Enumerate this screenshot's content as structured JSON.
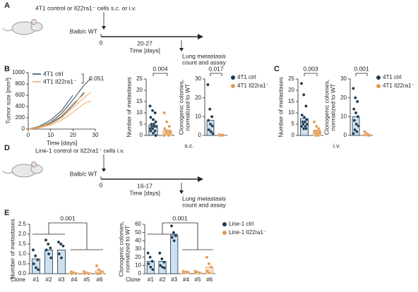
{
  "panel_labels": [
    "A",
    "B",
    "C",
    "D",
    "E"
  ],
  "schematics": [
    {
      "cells": "4T1 control or Il22ra1⁻ cells s.c. or i.v.",
      "host": "Balb/c WT",
      "start": 0,
      "duration": "20-27",
      "time_label": "Time [days]",
      "endpoint": [
        "Lung metastasis",
        "count and assay"
      ]
    },
    {
      "cells": "Line-1 control or Il22ra1⁻ cells i.v.",
      "host": "Balb/c WT",
      "start": 0,
      "duration": "16-17",
      "time_label": "Time [days]",
      "endpoint": [
        "Lung metastasis",
        "count and assay"
      ]
    }
  ],
  "route_labels": [
    "s.c.",
    "i.v."
  ],
  "chart_data": [
    {
      "type": "line",
      "xlabel": "Time [days]",
      "ylabel": [
        "Tumor size [mm³]"
      ],
      "x": [
        0,
        5,
        10,
        15,
        20,
        25,
        28
      ],
      "xlim": [
        0,
        30
      ],
      "xticks": [
        0,
        10,
        20,
        30
      ],
      "ylim": [
        0,
        1000
      ],
      "yticks": [
        0,
        200,
        400,
        600,
        800,
        1000
      ],
      "annotations": [
        "0.051"
      ],
      "series": [
        {
          "name": "4T1 ctrl",
          "color": "#2b4a63",
          "values": [
            0,
            40,
            120,
            280,
            520,
            780,
            900
          ]
        },
        {
          "color": "#2b4a63",
          "values": [
            0,
            30,
            100,
            220,
            420,
            650,
            null
          ]
        },
        {
          "color": "#2b4a63",
          "values": [
            0,
            50,
            160,
            330,
            600,
            null,
            null
          ]
        },
        {
          "name": "4T1 Il22ra1⁻",
          "color": "#eca864",
          "values": [
            0,
            30,
            90,
            200,
            380,
            560,
            650
          ]
        },
        {
          "color": "#eca864",
          "values": [
            0,
            20,
            70,
            160,
            300,
            450,
            500
          ]
        },
        {
          "color": "#eca864",
          "values": [
            0,
            40,
            110,
            240,
            450,
            620,
            null
          ]
        }
      ]
    },
    {
      "type": "bar",
      "ylabel": [
        "Number of metastases"
      ],
      "ylim": [
        0,
        25
      ],
      "yticks": [
        0,
        5,
        10,
        15,
        20,
        25
      ],
      "annotations": [
        "0.004"
      ],
      "series": [
        {
          "color": "#1d3a52",
          "fill": "#cfe0ee",
          "values": [
            4.5
          ],
          "points": [
            [
              13,
              11,
              10,
              8,
              7,
              6,
              5,
              5,
              4,
              4,
              4,
              3,
              3,
              2,
              2,
              1,
              0
            ]
          ]
        },
        {
          "color": "#e09a55",
          "fill": "#fbe3c8",
          "values": [
            2
          ],
          "points": [
            [
              10,
              6,
              4,
              3,
              2,
              2,
              2,
              1,
              1,
              1,
              0,
              0
            ]
          ]
        }
      ]
    },
    {
      "type": "bar",
      "ylabel": [
        "Clonogenic colonies,",
        "normalized to WT"
      ],
      "ylim": [
        0,
        30
      ],
      "yticks": [
        0,
        10,
        20,
        30
      ],
      "annotations": [
        "0.017"
      ],
      "series": [
        {
          "name": "4T1 ctrl",
          "color": "#1d3a52",
          "fill": "#cfe0ee",
          "values": [
            8
          ],
          "points": [
            [
              27,
              14,
              10,
              8,
              6,
              5,
              3,
              2,
              1
            ]
          ]
        },
        {
          "name": "4T1 Il22ra1⁻",
          "color": "#e09a55",
          "fill": "#fbe3c8",
          "values": [
            0.2
          ],
          "points": [
            [
              0.5,
              0.3,
              0.2,
              0.1,
              0
            ]
          ]
        }
      ]
    },
    {
      "type": "bar",
      "ylabel": [
        "Number of metastases"
      ],
      "ylim": [
        0,
        25
      ],
      "yticks": [
        0,
        5,
        10,
        15,
        20,
        25
      ],
      "annotations": [
        "0.003"
      ],
      "series": [
        {
          "color": "#1d3a52",
          "fill": "#cfe0ee",
          "values": [
            7.5
          ],
          "points": [
            [
              23,
              18,
              13,
              9,
              8,
              7,
              6,
              6,
              5,
              5,
              4,
              4,
              3,
              3
            ]
          ]
        },
        {
          "color": "#e09a55",
          "fill": "#fbe3c8",
          "values": [
            2
          ],
          "points": [
            [
              6,
              4,
              3,
              2,
              2,
              2,
              1,
              1,
              1,
              0,
              0
            ]
          ]
        }
      ]
    },
    {
      "type": "bar",
      "ylabel": [
        "Clonogenic colonies,",
        "normalized to WT"
      ],
      "ylim": [
        0,
        30
      ],
      "yticks": [
        0,
        10,
        20,
        30
      ],
      "annotations": [
        "0.001"
      ],
      "series": [
        {
          "name": "4T1 ctrl",
          "color": "#1d3a52",
          "fill": "#cfe0ee",
          "values": [
            10
          ],
          "points": [
            [
              25,
              20,
              18,
              14,
              12,
              10,
              8,
              6,
              5,
              3,
              2,
              1
            ]
          ]
        },
        {
          "name": "4T1 Il22ra1⁻",
          "color": "#e09a55",
          "fill": "#fbe3c8",
          "values": [
            0.5
          ],
          "points": [
            [
              2,
              1,
              0.5,
              0.3,
              0.2,
              0
            ]
          ]
        }
      ]
    },
    {
      "type": "bar",
      "ylabel": [
        "Number of metastases"
      ],
      "xlabel": "Clone",
      "categories": [
        "#1",
        "#2",
        "#3",
        "#4",
        "#5",
        "#6"
      ],
      "ylim": [
        0,
        2.5
      ],
      "yticks": [
        {
          "value": 0,
          "label": "0.0"
        },
        0.5,
        {
          "value": 1,
          "label": "1.0"
        },
        1.5,
        {
          "value": 2,
          "label": "2.0"
        },
        2.5
      ],
      "annotations": [
        "0.001"
      ],
      "series": [
        {
          "color": "#1d3a52",
          "fill": "#cfe0ee",
          "values": [
            0.75,
            1.2,
            1.2,
            null,
            null,
            null
          ],
          "points": [
            [
              1.2,
              0.9,
              0.7,
              0.5,
              0.3,
              0.2
            ],
            [
              1.7,
              1.5,
              1.3,
              1.2,
              1.0,
              0.8
            ],
            [
              1.6,
              1.5,
              1.4,
              1.0,
              0.8
            ],
            [],
            [],
            []
          ]
        },
        {
          "color": "#e09a55",
          "fill": "#fbe3c8",
          "values": [
            null,
            null,
            null,
            0.05,
            0.05,
            0.15
          ],
          "points": [
            [],
            [],
            [],
            [
              0.1,
              0.05,
              0,
              0
            ],
            [
              0.1,
              0.05,
              0,
              0
            ],
            [
              0.4,
              0.2,
              0.1,
              0,
              0
            ]
          ]
        }
      ]
    },
    {
      "type": "bar",
      "ylabel": [
        "Clonogenic colonies,",
        "normalized to WT"
      ],
      "xlabel": "Clone",
      "categories": [
        "#1",
        "#2",
        "#3",
        "#4",
        "#5",
        "#6"
      ],
      "ylim": [
        0,
        60
      ],
      "yticks": [
        0,
        10,
        20,
        30,
        40,
        50,
        60
      ],
      "annotations": [
        "0.001"
      ],
      "series": [
        {
          "name": "Line-1 ctrl",
          "color": "#1d3a52",
          "fill": "#cfe0ee",
          "values": [
            15,
            15,
            47,
            null,
            null,
            null
          ],
          "points": [
            [
              25,
              20,
              15,
              12,
              8,
              5
            ],
            [
              25,
              18,
              14,
              10,
              8,
              7
            ],
            [
              58,
              50,
              46,
              44,
              40
            ],
            [],
            [],
            []
          ]
        },
        {
          "name": "Line-1 Il22ra1⁻",
          "color": "#e09a55",
          "fill": "#fbe3c8",
          "values": [
            null,
            null,
            null,
            2,
            2,
            8
          ],
          "points": [
            [],
            [],
            [],
            [
              3,
              2,
              2,
              1
            ],
            [
              3,
              2,
              1,
              1
            ],
            [
              20,
              12,
              8,
              3,
              1
            ]
          ]
        }
      ]
    }
  ]
}
